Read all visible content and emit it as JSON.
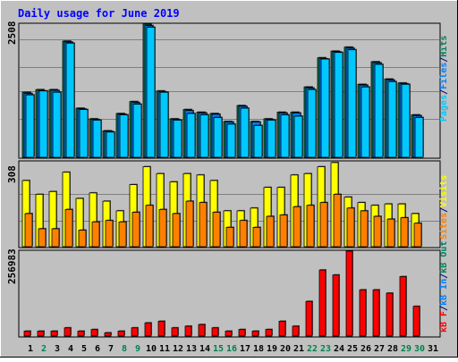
{
  "title": "Daily usage for June 2019",
  "days": [
    "1",
    "2",
    "3",
    "4",
    "5",
    "6",
    "7",
    "8",
    "9",
    "10",
    "11",
    "12",
    "13",
    "14",
    "15",
    "16",
    "17",
    "18",
    "19",
    "20",
    "21",
    "22",
    "23",
    "24",
    "25",
    "26",
    "27",
    "28",
    "29",
    "30",
    "31"
  ],
  "weekend_days": [
    2,
    8,
    9,
    15,
    16,
    22,
    23,
    29,
    30
  ],
  "colors": {
    "background": "#c0c0c0",
    "title": "#0000ff",
    "weekday_label": "#000000",
    "weekend_label": "#00804d",
    "gridline": "#808080",
    "hits": "#00805c",
    "files": "#0080ff",
    "pages": "#00c8ff",
    "visits": "#ffff00",
    "sites": "#ff8000",
    "kbytes": "#ff0000"
  },
  "chart_data": [
    {
      "type": "bar",
      "name": "hits-files-pages",
      "ylim": [
        0,
        2508
      ],
      "max_label": "2508",
      "side_label": [
        "Pages",
        "/",
        "Files",
        "/",
        "Hits"
      ],
      "series": [
        {
          "name": "Hits",
          "values": [
            1225,
            1275,
            1275,
            2188,
            925,
            725,
            500,
            825,
            1050,
            2508,
            1250,
            725,
            900,
            850,
            825,
            675,
            975,
            675,
            725,
            850,
            850,
            1325,
            1875,
            2000,
            2075,
            1375,
            1800,
            1475,
            1400,
            800,
            0
          ]
        },
        {
          "name": "Files",
          "values": [
            1200,
            1250,
            1260,
            2170,
            910,
            710,
            490,
            810,
            1030,
            2480,
            1230,
            710,
            880,
            835,
            810,
            665,
            960,
            665,
            710,
            835,
            835,
            1305,
            1855,
            1985,
            2055,
            1360,
            1780,
            1455,
            1385,
            785,
            0
          ]
        },
        {
          "name": "Pages",
          "values": [
            1175,
            1250,
            1225,
            2150,
            900,
            700,
            475,
            800,
            1000,
            2450,
            1225,
            700,
            825,
            800,
            750,
            625,
            925,
            600,
            700,
            800,
            775,
            1275,
            1850,
            1975,
            2025,
            1325,
            1750,
            1425,
            1375,
            750,
            0
          ]
        }
      ]
    },
    {
      "type": "bar",
      "name": "visits-sites",
      "ylim": [
        0,
        308
      ],
      "max_label": "308",
      "side_label": [
        "Sites",
        "/",
        "Visits"
      ],
      "series": [
        {
          "name": "Visits",
          "values": [
            240,
            190,
            200,
            270,
            175,
            195,
            165,
            130,
            225,
            290,
            265,
            235,
            265,
            260,
            240,
            130,
            130,
            140,
            215,
            215,
            260,
            265,
            290,
            305,
            180,
            160,
            150,
            155,
            155,
            120,
            0
          ]
        },
        {
          "name": "Sites",
          "values": [
            120,
            65,
            65,
            135,
            60,
            90,
            95,
            90,
            125,
            150,
            135,
            120,
            165,
            160,
            125,
            70,
            95,
            70,
            110,
            115,
            145,
            150,
            160,
            190,
            140,
            130,
            110,
            100,
            105,
            85,
            0
          ]
        }
      ]
    },
    {
      "type": "bar",
      "name": "kbytes",
      "ylim": [
        0,
        256983
      ],
      "max_label": "256983",
      "side_label": [
        "kB F",
        "/",
        "kB In",
        "/",
        "kB Out"
      ],
      "series": [
        {
          "name": "kB F",
          "values": [
            15000,
            15000,
            15000,
            25000,
            15000,
            20000,
            10000,
            15000,
            25000,
            40000,
            45000,
            25000,
            30000,
            35000,
            25000,
            15000,
            20000,
            15000,
            20000,
            45000,
            30000,
            105000,
            200000,
            185000,
            256983,
            140000,
            140000,
            130000,
            180000,
            90000,
            0
          ]
        }
      ]
    }
  ]
}
